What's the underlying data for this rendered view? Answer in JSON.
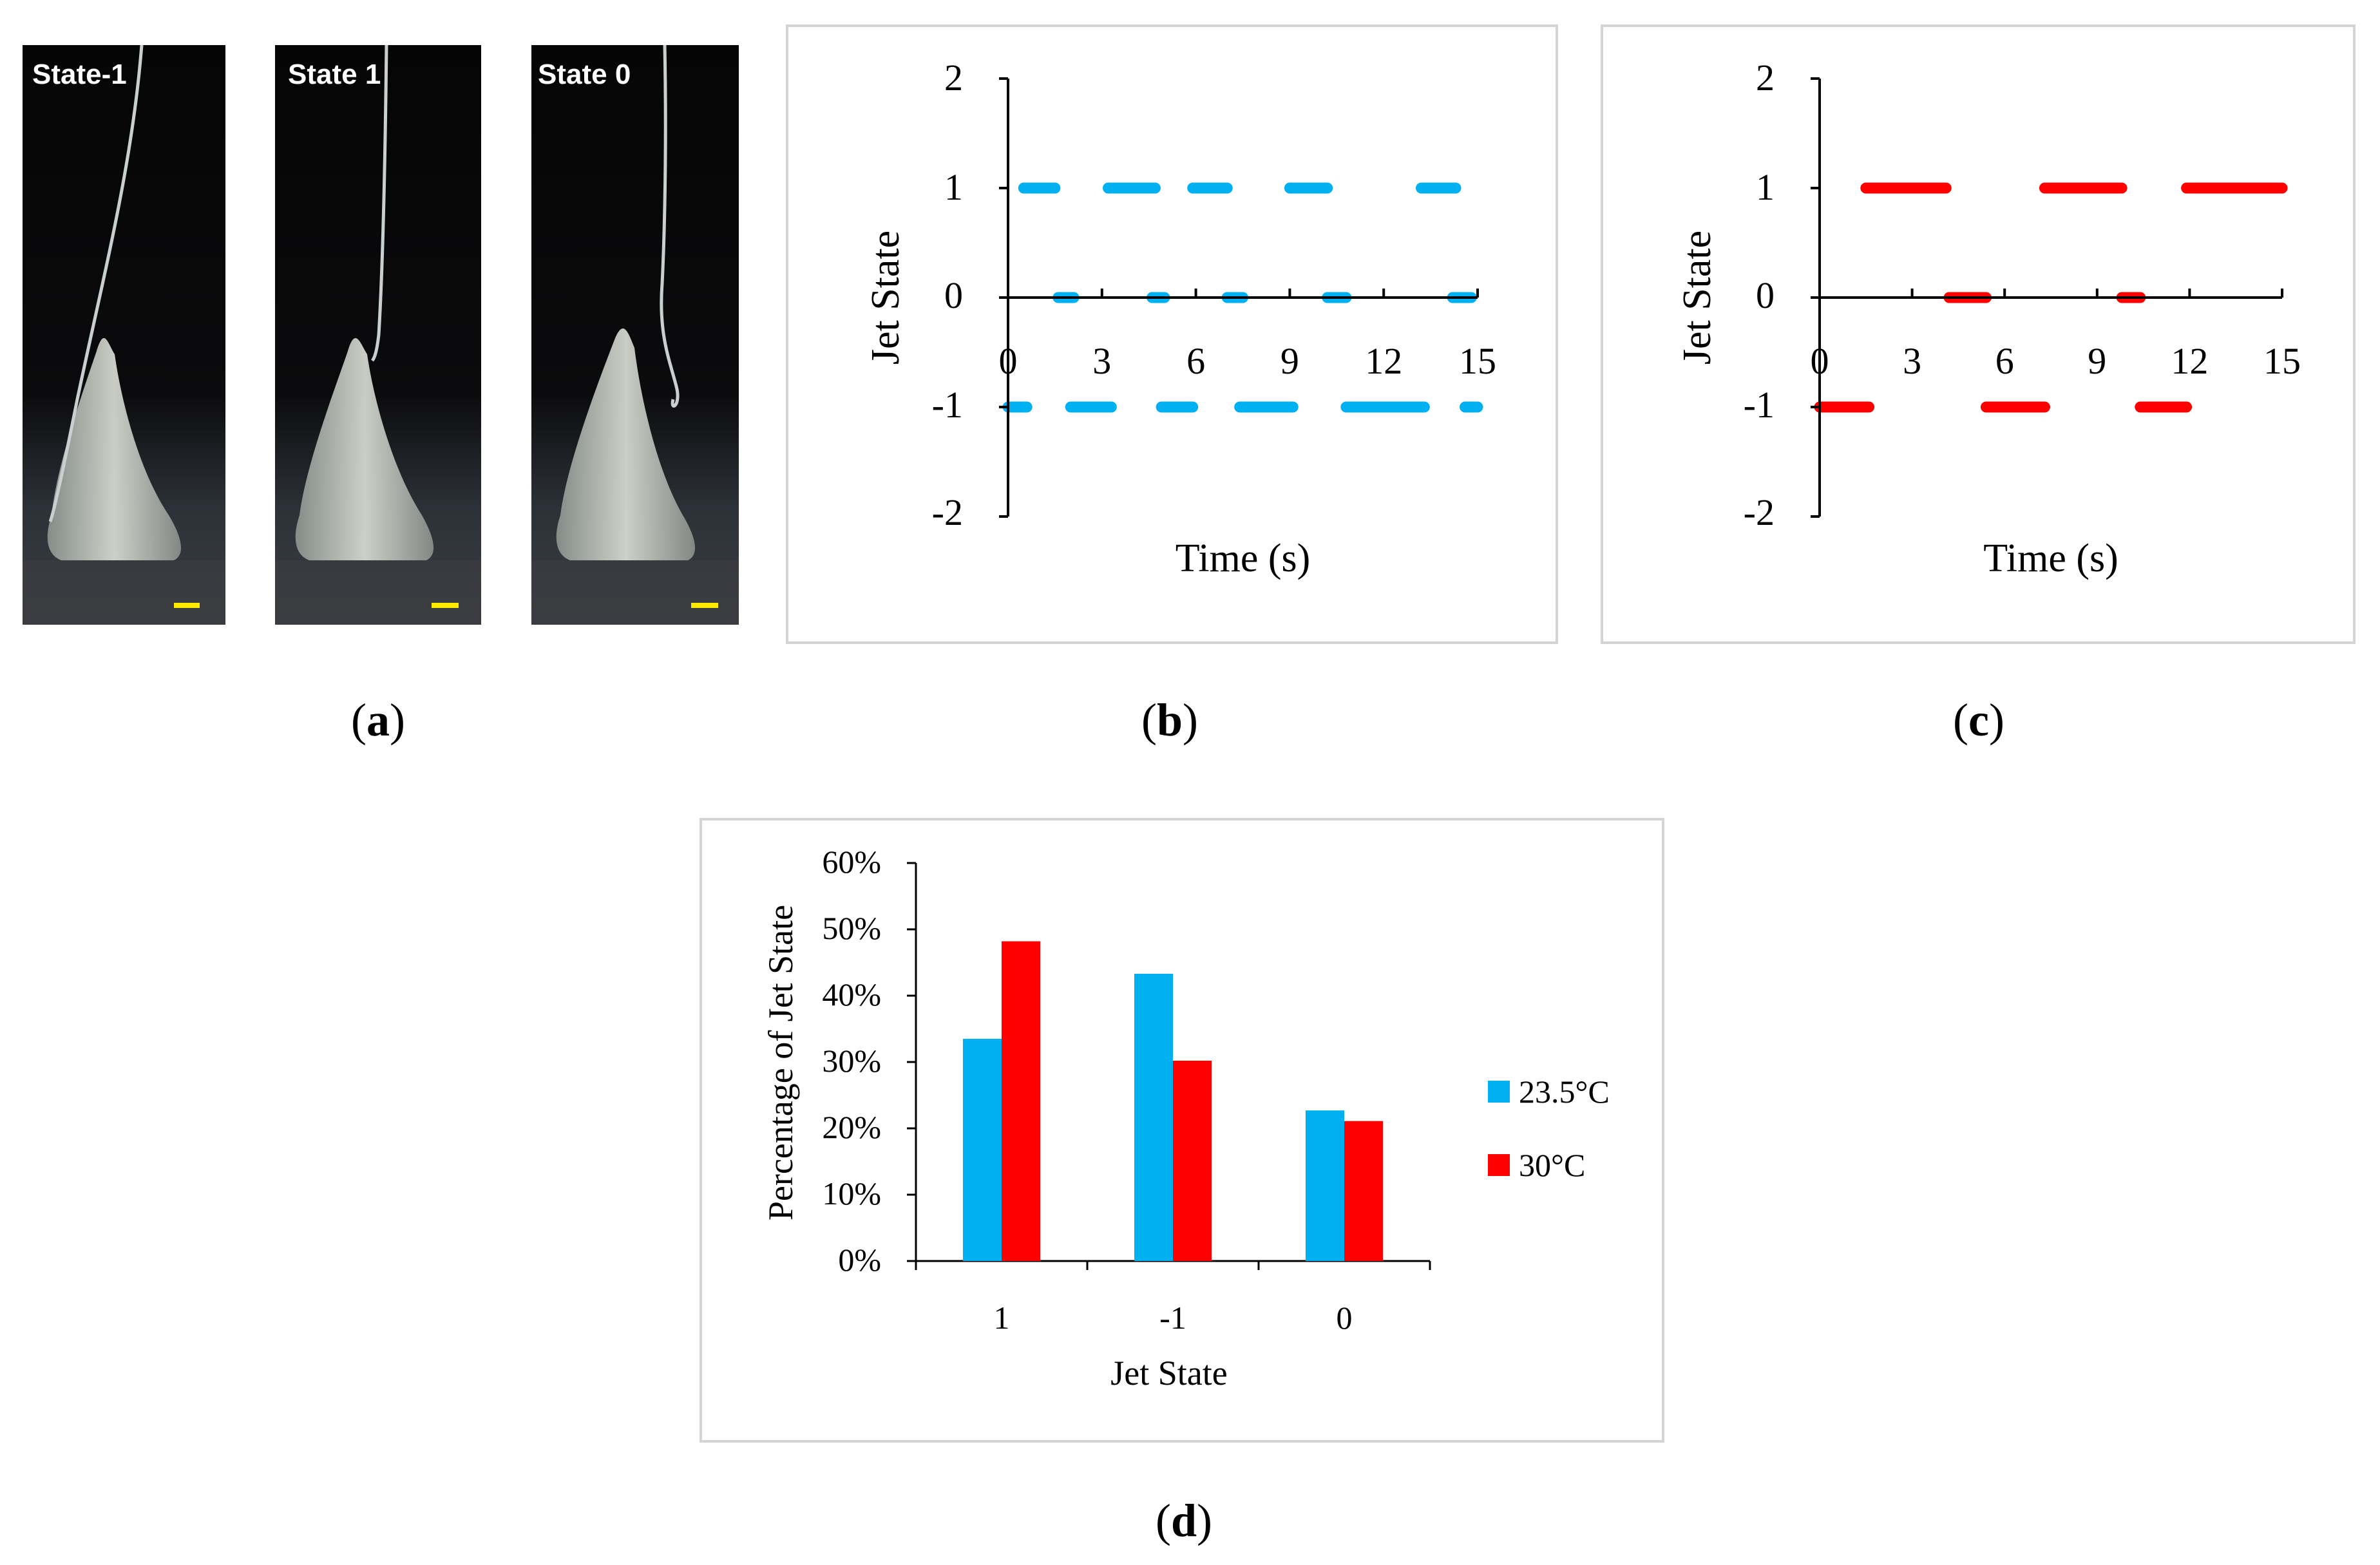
{
  "colors": {
    "series_a": "#00B0F0",
    "series_b": "#FF0000",
    "frame": "#d4d4d4"
  },
  "panels": {
    "a": {
      "prefix": "(",
      "letter": "a",
      "suffix": ")"
    },
    "b": {
      "prefix": "(",
      "letter": "b",
      "suffix": ")"
    },
    "c": {
      "prefix": "(",
      "letter": "c",
      "suffix": ")"
    },
    "d": {
      "prefix": "(",
      "letter": "d",
      "suffix": ")"
    }
  },
  "photos": [
    {
      "label": "State-1"
    },
    {
      "label": "State 1"
    },
    {
      "label": "State 0"
    }
  ],
  "chart_data": [
    {
      "id": "b",
      "type": "line",
      "title": "",
      "xlabel": "Time (s)",
      "ylabel": "Jet State",
      "xlim": [
        0,
        15
      ],
      "ylim": [
        -2,
        2
      ],
      "xticks": [
        "0",
        "3",
        "6",
        "9",
        "12",
        "15"
      ],
      "yticks": [
        "2",
        "1",
        "0",
        "-1",
        "-2"
      ],
      "color": "#00B0F0",
      "series": [
        {
          "name": "23.5°C",
          "segments": [
            {
              "state": 1,
              "x": [
                0.5,
                1.5
              ]
            },
            {
              "state": 1,
              "x": [
                3.2,
                4.7
              ]
            },
            {
              "state": 1,
              "x": [
                5.9,
                7.0
              ]
            },
            {
              "state": 1,
              "x": [
                9.0,
                10.2
              ]
            },
            {
              "state": 1,
              "x": [
                13.2,
                14.3
              ]
            },
            {
              "state": 0,
              "x": [
                1.6,
                2.1
              ]
            },
            {
              "state": 0,
              "x": [
                4.6,
                5.0
              ]
            },
            {
              "state": 0,
              "x": [
                7.0,
                7.5
              ]
            },
            {
              "state": 0,
              "x": [
                10.2,
                10.8
              ]
            },
            {
              "state": 0,
              "x": [
                14.2,
                14.8
              ]
            },
            {
              "state": -1,
              "x": [
                0.0,
                0.6
              ]
            },
            {
              "state": -1,
              "x": [
                2.0,
                3.3
              ]
            },
            {
              "state": -1,
              "x": [
                4.9,
                5.9
              ]
            },
            {
              "state": -1,
              "x": [
                7.4,
                9.1
              ]
            },
            {
              "state": -1,
              "x": [
                10.8,
                13.3
              ]
            },
            {
              "state": -1,
              "x": [
                14.6,
                15.0
              ]
            }
          ]
        }
      ]
    },
    {
      "id": "c",
      "type": "line",
      "title": "",
      "xlabel": "Time (s)",
      "ylabel": "Jet State",
      "xlim": [
        0,
        15
      ],
      "ylim": [
        -2,
        2
      ],
      "xticks": [
        "0",
        "3",
        "6",
        "9",
        "12",
        "15"
      ],
      "yticks": [
        "2",
        "1",
        "0",
        "-1",
        "-2"
      ],
      "color": "#FF0000",
      "series": [
        {
          "name": "30°C",
          "segments": [
            {
              "state": 1,
              "x": [
                1.5,
                4.1
              ]
            },
            {
              "state": 1,
              "x": [
                7.3,
                9.8
              ]
            },
            {
              "state": 1,
              "x": [
                11.9,
                15.0
              ]
            },
            {
              "state": 0,
              "x": [
                4.2,
                5.4
              ]
            },
            {
              "state": 0,
              "x": [
                9.8,
                10.4
              ]
            },
            {
              "state": -1,
              "x": [
                0.0,
                1.6
              ]
            },
            {
              "state": -1,
              "x": [
                5.4,
                7.3
              ]
            },
            {
              "state": -1,
              "x": [
                10.4,
                11.9
              ]
            }
          ]
        }
      ]
    },
    {
      "id": "d",
      "type": "bar",
      "title": "",
      "xlabel": "Jet State",
      "ylabel": "Percentage of Jet State",
      "categories": [
        "1",
        "-1",
        "0"
      ],
      "yticks": [
        "60%",
        "50%",
        "40%",
        "30%",
        "20%",
        "10%",
        "0%"
      ],
      "ylim": [
        0,
        60
      ],
      "series": [
        {
          "name": "23.5°C",
          "color": "#00B0F0",
          "values": [
            33.5,
            43.3,
            22.7
          ]
        },
        {
          "name": "30°C",
          "color": "#FF0000",
          "values": [
            48.2,
            30.2,
            21.1
          ]
        }
      ]
    }
  ]
}
